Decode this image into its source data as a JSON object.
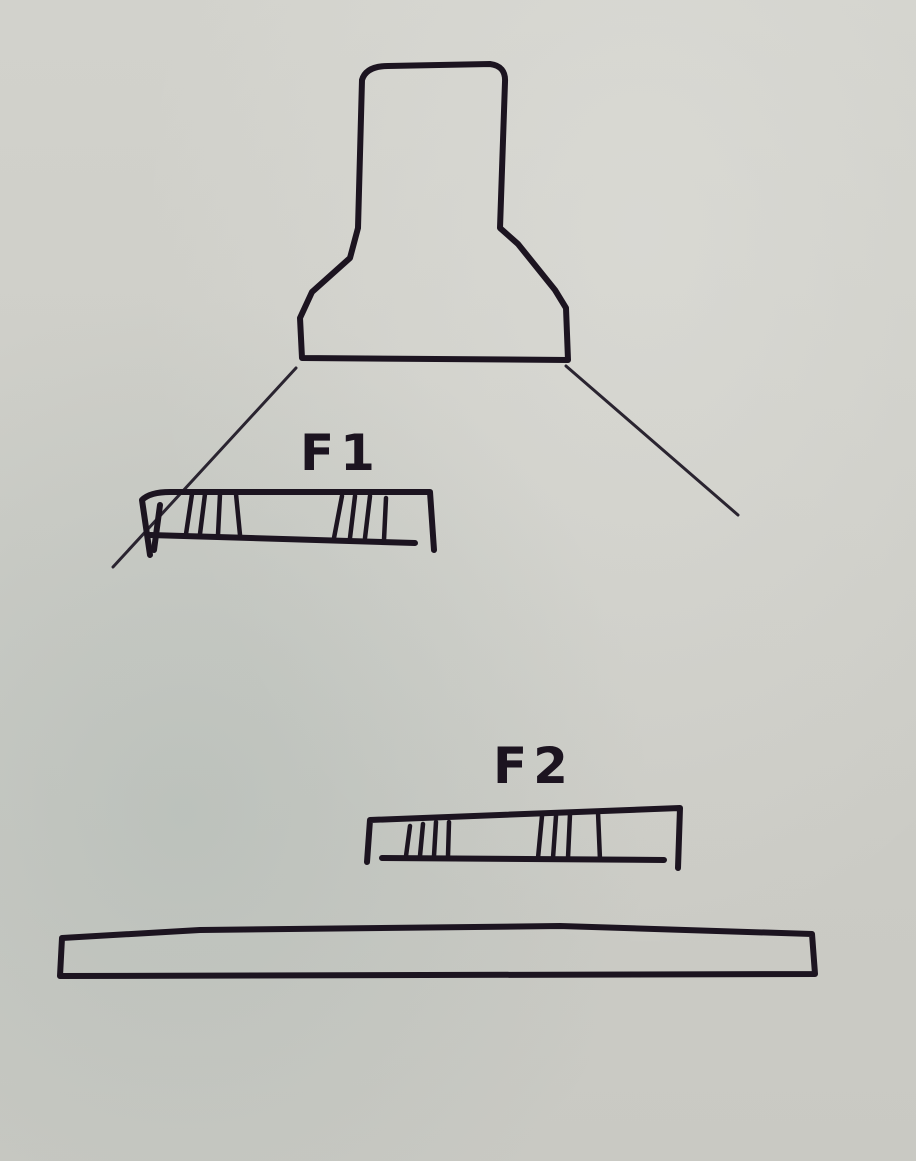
{
  "labels": {
    "f1": "F1",
    "f2": "F2"
  },
  "colors": {
    "paper": "#cfcfc9",
    "ink": "#1c1420"
  }
}
